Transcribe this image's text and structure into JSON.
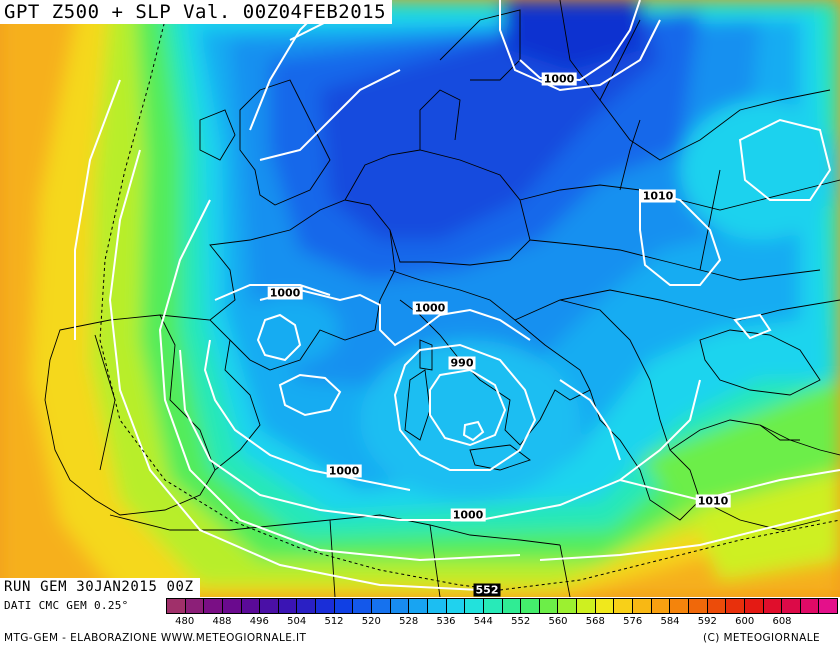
{
  "title": "GPT Z500 + SLP Val. 00Z04FEB2015",
  "run_info": "RUN GEM 30JAN2015 00Z",
  "data_source": "DATI CMC GEM 0.25°",
  "credit_left": "MTG-GEM - ELABORAZIONE WWW.METEOGIORNALE.IT",
  "credit_right": "(C) METEOGIORNALE",
  "isobar_labels": [
    "1000",
    "1010",
    "1000",
    "1000",
    "990",
    "1000",
    "1000",
    "1010",
    "552"
  ],
  "legend": {
    "ticks": [
      "480",
      "488",
      "496",
      "504",
      "512",
      "520",
      "528",
      "536",
      "544",
      "552",
      "560",
      "568",
      "576",
      "584",
      "592",
      "600",
      "608"
    ],
    "colors": [
      "#a0306a",
      "#8c1f78",
      "#7a0f85",
      "#6a0a8e",
      "#5a0a98",
      "#4a10a6",
      "#3a14b4",
      "#2a20c4",
      "#1a2ed8",
      "#1040e4",
      "#1458ea",
      "#1672ee",
      "#188cf0",
      "#18a4f2",
      "#1cbef2",
      "#20d2ee",
      "#22e2dc",
      "#28eab8",
      "#30ec94",
      "#44ee6c",
      "#6cee48",
      "#9cf030",
      "#cef020",
      "#f0e81c",
      "#f8d018",
      "#f8b814",
      "#f8a010",
      "#f4840c",
      "#f0680a",
      "#ec4c0a",
      "#e8300c",
      "#e41a14",
      "#e00e2c",
      "#dc0a48",
      "#e00a66",
      "#e4108a"
    ]
  },
  "colors": {
    "sea_far": "#f7a51c",
    "land_white": "#ffffff"
  }
}
